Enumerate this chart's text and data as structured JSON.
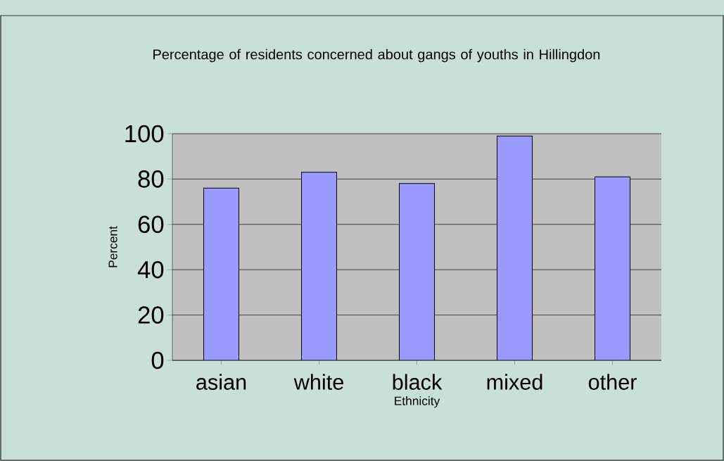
{
  "chart_data": {
    "type": "bar",
    "title": "Percentage of residents concerned about gangs of youths in Hillingdon",
    "xlabel": "Ethnicity",
    "ylabel": "Percent",
    "categories": [
      "asian",
      "white",
      "black",
      "mixed",
      "other"
    ],
    "values": [
      76,
      83,
      78,
      99,
      81
    ],
    "color": "#9999ff",
    "ylim": [
      0,
      100
    ],
    "yticks": [
      0,
      20,
      40,
      60,
      80,
      100
    ],
    "grid": "y"
  }
}
